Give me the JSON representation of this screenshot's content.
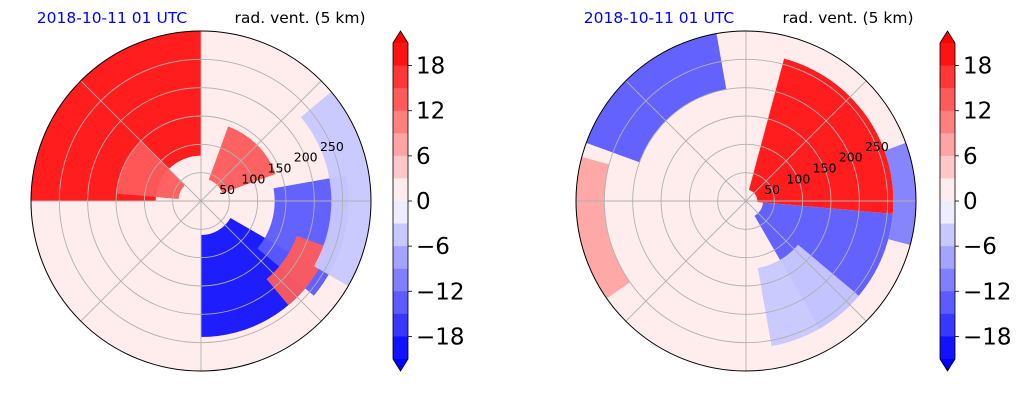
{
  "chart_data": [
    {
      "type": "heatmap",
      "projection": "polar",
      "title_left": "2018-10-11 01 UTC",
      "title_right": "rad. vent. (5 km)",
      "title_left_color": "#0000ff",
      "radial_ticks": [
        "50",
        "100",
        "150",
        "200",
        "250"
      ],
      "radial_values": [
        50,
        100,
        150,
        200,
        250
      ],
      "rmax": 300,
      "colorbar": {
        "ticks": [
          "18",
          "12",
          "6",
          "0",
          "−6",
          "−12",
          "−18"
        ],
        "tick_values": [
          18,
          12,
          6,
          0,
          -6,
          -12,
          -18
        ],
        "range": [
          -21,
          21
        ],
        "extend": "both",
        "colormap": "bwr",
        "levels": 14
      },
      "regions": [
        {
          "sector_deg": [
            90,
            180
          ],
          "r_range": [
            80,
            300
          ],
          "value": 21
        },
        {
          "sector_deg": [
            135,
            175
          ],
          "r_range": [
            40,
            150
          ],
          "value": 12
        },
        {
          "sector_deg": [
            20,
            70
          ],
          "r_range": [
            40,
            140
          ],
          "value": 12
        },
        {
          "sector_deg": [
            -90,
            -30
          ],
          "r_range": [
            60,
            240
          ],
          "value": -21
        },
        {
          "sector_deg": [
            -40,
            10
          ],
          "r_range": [
            130,
            260
          ],
          "value": -14
        },
        {
          "sector_deg": [
            -50,
            -20
          ],
          "r_range": [
            180,
            240
          ],
          "value": 14
        },
        {
          "sector_deg": [
            -30,
            40
          ],
          "r_range": [
            230,
            300
          ],
          "value": -6
        }
      ]
    },
    {
      "type": "heatmap",
      "projection": "polar",
      "title_left": "2018-10-11 01 UTC",
      "title_right": "rad. vent. (5 km)",
      "title_left_color": "#0000ff",
      "radial_ticks": [
        "50",
        "100",
        "150",
        "200",
        "250"
      ],
      "radial_values": [
        50,
        100,
        150,
        200,
        250
      ],
      "rmax": 300,
      "colorbar": {
        "ticks": [
          "18",
          "12",
          "6",
          "0",
          "−6",
          "−12",
          "−18"
        ],
        "tick_values": [
          18,
          12,
          6,
          0,
          -6,
          -12,
          -18
        ],
        "range": [
          -21,
          21
        ],
        "extend": "both",
        "colormap": "bwr",
        "levels": 14
      },
      "regions": [
        {
          "sector_deg": [
            -5,
            75
          ],
          "r_range": [
            20,
            260
          ],
          "value": 21
        },
        {
          "sector_deg": [
            -60,
            -5
          ],
          "r_range": [
            30,
            260
          ],
          "value": -14
        },
        {
          "sector_deg": [
            -80,
            -40
          ],
          "r_range": [
            120,
            260
          ],
          "value": -6
        },
        {
          "sector_deg": [
            100,
            160
          ],
          "r_range": [
            200,
            300
          ],
          "value": -14
        },
        {
          "sector_deg": [
            165,
            215
          ],
          "r_range": [
            250,
            300
          ],
          "value": 6
        },
        {
          "sector_deg": [
            -15,
            20
          ],
          "r_range": [
            260,
            300
          ],
          "value": -10
        }
      ]
    }
  ]
}
